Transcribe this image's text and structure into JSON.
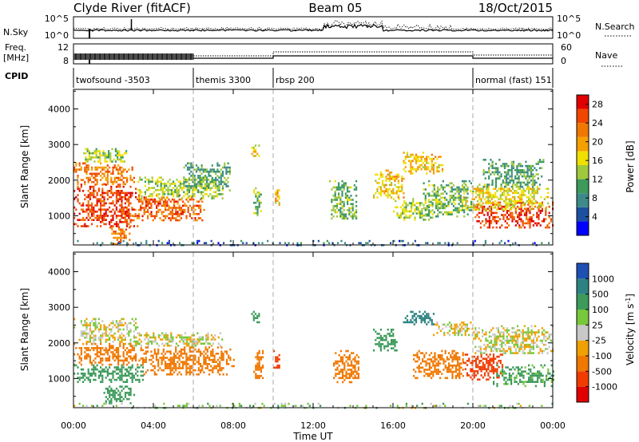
{
  "header": {
    "station": "Clyde River (fitACF)",
    "beam": "Beam 05",
    "date": "18/Oct/2015"
  },
  "summary_panels": {
    "nsky_label": "N.Sky",
    "nsky_ticks": [
      "10^5",
      "10^0"
    ],
    "nsearch_label": "N.Search",
    "freq_label_top": "Freq.",
    "freq_label_bottom": "[MHz]",
    "freq_ticks": [
      "12",
      "8"
    ],
    "nave_ticks": [
      "60",
      "0"
    ],
    "nave_label": "Nave",
    "cpid_label": "CPID"
  },
  "cpid_segments": [
    {
      "label": "twofsound -3503",
      "start": 0.0
    },
    {
      "label": "themis 3300",
      "start": 6.0
    },
    {
      "label": "rbsp 200",
      "start": 10.0
    },
    {
      "label": "normal (fast) 151",
      "start": 20.0
    }
  ],
  "axes": {
    "x_ticks": [
      "00:00",
      "04:00",
      "08:00",
      "12:00",
      "16:00",
      "20:00",
      "00:00"
    ],
    "x_label": "Time UT",
    "y_label": "Slant Range [km]",
    "y_ticks": [
      "1000",
      "2000",
      "3000",
      "4000"
    ]
  },
  "colorbars": {
    "power": {
      "label": "Power [dB]",
      "ticks": [
        "28",
        "24",
        "20",
        "16",
        "12",
        "8",
        "4"
      ],
      "colors": [
        "#0000ff",
        "#1e50a0",
        "#3c8a8a",
        "#3c9a5a",
        "#a0c83c",
        "#f0e000",
        "#f5a000",
        "#f07800",
        "#f04600",
        "#e00000"
      ]
    },
    "velocity": {
      "label": "Velocity [m s^-1]",
      "ticks": [
        "1000",
        "500",
        "100",
        "25",
        "-25",
        "-100",
        "-500",
        "-1000"
      ],
      "colors": [
        "#1e50b4",
        "#2d8282",
        "#3c9a5a",
        "#78c83c",
        "#c8c8c8",
        "#f0a000",
        "#f07800",
        "#f03c00",
        "#e00000"
      ]
    }
  },
  "chart_data": {
    "type": "heatmap",
    "x_range_hours": [
      0,
      24
    ],
    "y_range_km": [
      180,
      4550
    ],
    "power_panel": {
      "ylabel": "Slant Range [km]",
      "colorbar_label": "Power [dB]",
      "zlim": [
        0,
        30
      ],
      "echo_bands": [
        {
          "t0": 0.0,
          "t1": 3.2,
          "r0": 700,
          "r1": 1900,
          "value": 26
        },
        {
          "t0": 0.0,
          "t1": 3.0,
          "r0": 1900,
          "r1": 2500,
          "value": 22
        },
        {
          "t0": 0.4,
          "t1": 2.6,
          "r0": 2500,
          "r1": 2900,
          "value": 14
        },
        {
          "t0": 2.8,
          "t1": 6.5,
          "r0": 900,
          "r1": 1600,
          "value": 24
        },
        {
          "t0": 3.2,
          "t1": 7.5,
          "r0": 1500,
          "r1": 2100,
          "value": 14
        },
        {
          "t0": 5.5,
          "t1": 7.8,
          "r0": 1700,
          "r1": 2500,
          "value": 10
        },
        {
          "t0": 1.8,
          "t1": 2.8,
          "r0": 200,
          "r1": 700,
          "value": 22
        },
        {
          "t0": 8.9,
          "t1": 9.3,
          "r0": 2600,
          "r1": 3000,
          "value": 16
        },
        {
          "t0": 9.0,
          "t1": 9.4,
          "r0": 1000,
          "r1": 1800,
          "value": 12
        },
        {
          "t0": 10.0,
          "t1": 10.3,
          "r0": 1300,
          "r1": 1800,
          "value": 18
        },
        {
          "t0": 12.8,
          "t1": 14.2,
          "r0": 900,
          "r1": 2000,
          "value": 12
        },
        {
          "t0": 15.0,
          "t1": 16.5,
          "r0": 1500,
          "r1": 2300,
          "value": 18
        },
        {
          "t0": 16.5,
          "t1": 18.5,
          "r0": 2200,
          "r1": 2800,
          "value": 18
        },
        {
          "t0": 16.0,
          "t1": 18.0,
          "r0": 900,
          "r1": 1500,
          "value": 14
        },
        {
          "t0": 17.5,
          "t1": 20.0,
          "r0": 1000,
          "r1": 2000,
          "value": 12
        },
        {
          "t0": 20.0,
          "t1": 24.0,
          "r0": 700,
          "r1": 1400,
          "value": 26
        },
        {
          "t0": 19.5,
          "t1": 23.8,
          "r0": 1200,
          "r1": 1900,
          "value": 16
        },
        {
          "t0": 20.5,
          "t1": 23.5,
          "r0": 1800,
          "r1": 2600,
          "value": 10
        }
      ],
      "ground_scatter": [
        {
          "t0": 0.0,
          "t1": 24.0,
          "r0": 180,
          "r1": 320,
          "value": 6
        }
      ]
    },
    "velocity_panel": {
      "ylabel": "Slant Range [km]",
      "colorbar_label": "Velocity [m s^-1]",
      "zlim": [
        -1000,
        1000
      ],
      "echo_bands": [
        {
          "t0": 0.0,
          "t1": 3.2,
          "r0": 2000,
          "r1": 2700,
          "value": 0
        },
        {
          "t0": 0.0,
          "t1": 3.5,
          "r0": 1400,
          "r1": 2000,
          "value": -200
        },
        {
          "t0": 0.0,
          "t1": 3.5,
          "r0": 900,
          "r1": 1400,
          "value": 200
        },
        {
          "t0": 3.5,
          "t1": 8.0,
          "r0": 1100,
          "r1": 1900,
          "value": -300
        },
        {
          "t0": 3.0,
          "t1": 7.5,
          "r0": 1900,
          "r1": 2300,
          "value": 0
        },
        {
          "t0": 1.5,
          "t1": 3.0,
          "r0": 300,
          "r1": 800,
          "value": 200
        },
        {
          "t0": 8.9,
          "t1": 9.3,
          "r0": 2600,
          "r1": 2900,
          "value": 200
        },
        {
          "t0": 9.0,
          "t1": 9.5,
          "r0": 1000,
          "r1": 1800,
          "value": -300
        },
        {
          "t0": 10.0,
          "t1": 10.3,
          "r0": 1300,
          "r1": 1800,
          "value": -700
        },
        {
          "t0": 13.0,
          "t1": 14.3,
          "r0": 900,
          "r1": 1800,
          "value": -400
        },
        {
          "t0": 15.0,
          "t1": 16.2,
          "r0": 1800,
          "r1": 2400,
          "value": 300
        },
        {
          "t0": 16.5,
          "t1": 18.0,
          "r0": 2500,
          "r1": 2900,
          "value": 700
        },
        {
          "t0": 17.0,
          "t1": 19.5,
          "r0": 1000,
          "r1": 1800,
          "value": -400
        },
        {
          "t0": 18.0,
          "t1": 20.0,
          "r0": 2200,
          "r1": 2600,
          "value": 0
        },
        {
          "t0": 19.5,
          "t1": 21.5,
          "r0": 1000,
          "r1": 1700,
          "value": -700
        },
        {
          "t0": 21.0,
          "t1": 24.0,
          "r0": 800,
          "r1": 1400,
          "value": 150
        },
        {
          "t0": 20.0,
          "t1": 24.0,
          "r0": 1700,
          "r1": 2500,
          "value": 0
        }
      ],
      "ground_scatter": [
        {
          "t0": 0.0,
          "t1": 24.0,
          "r0": 180,
          "r1": 320,
          "value": 50
        }
      ]
    }
  }
}
